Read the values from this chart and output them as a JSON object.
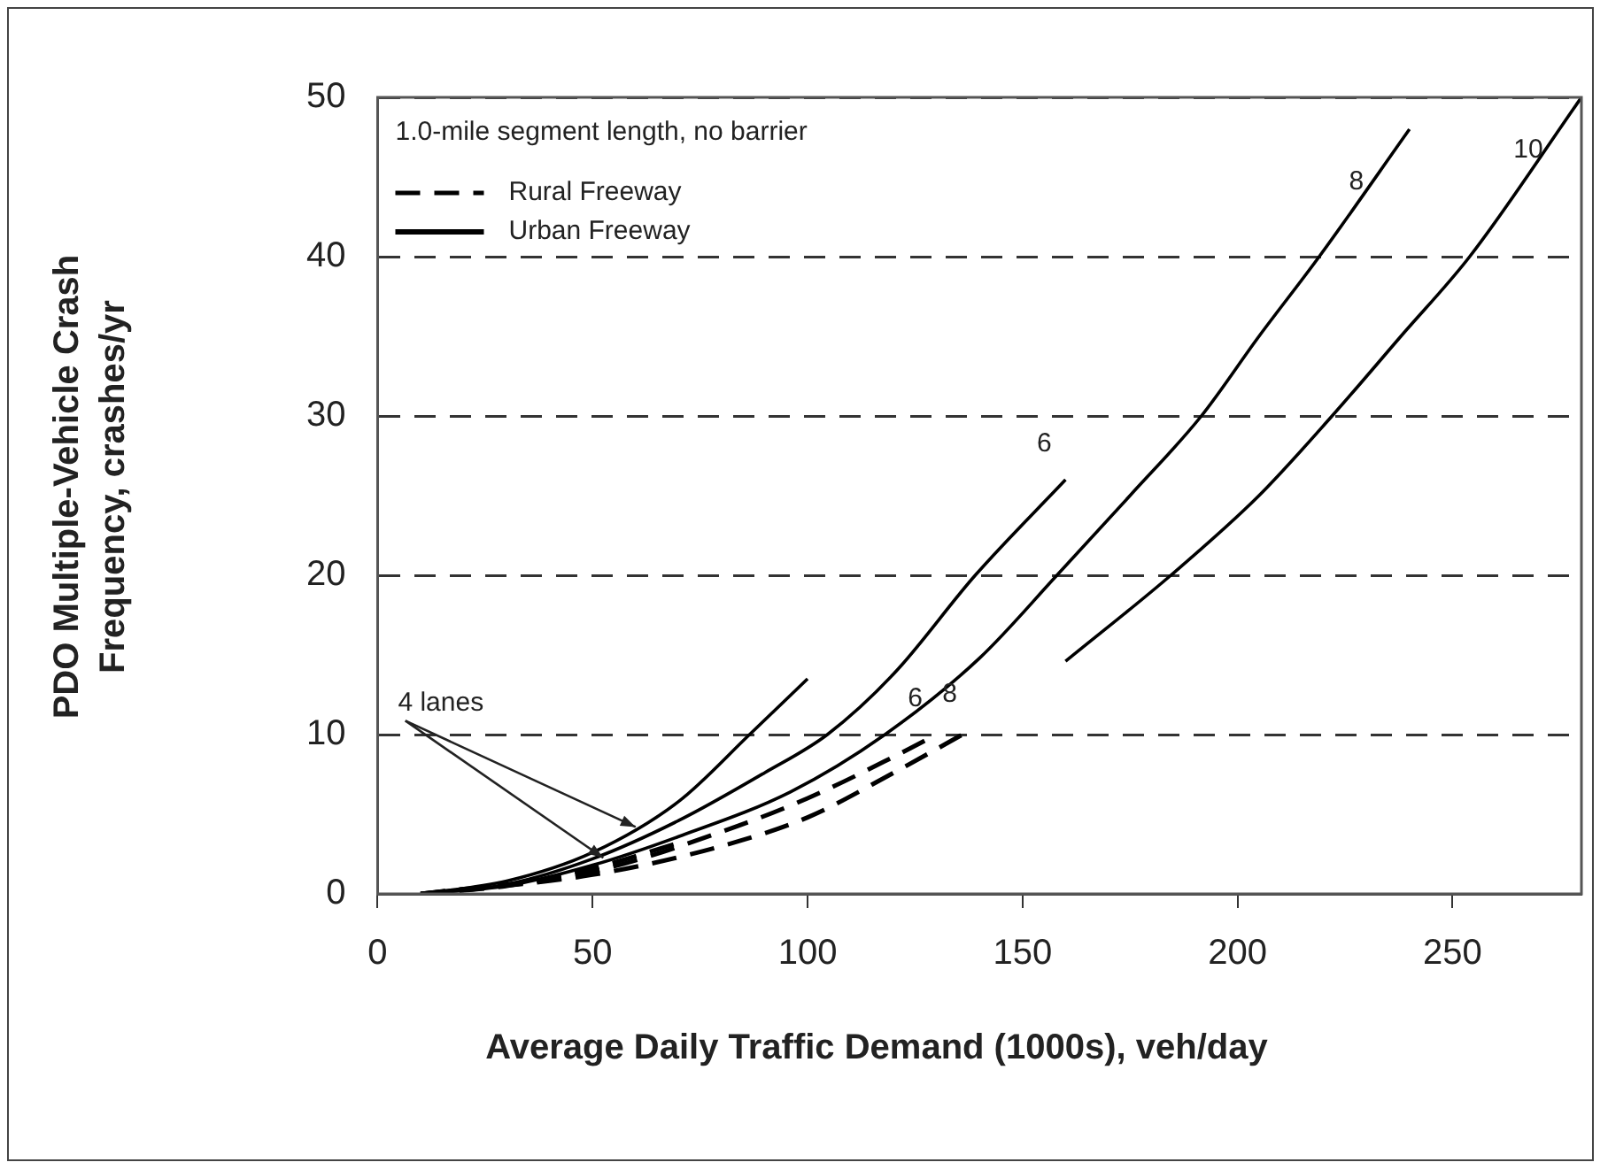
{
  "chart_data": {
    "type": "line",
    "xlabel": "Average Daily Traffic Demand (1000s), veh/day",
    "ylabel": "PDO Multiple-Vehicle Crash Frequency, crashes/yr",
    "xlim": [
      0,
      280
    ],
    "xticks": [
      0,
      50,
      100,
      150,
      200,
      250
    ],
    "ylim": [
      0,
      50
    ],
    "yticks": [
      0,
      10,
      20,
      30,
      40,
      50
    ],
    "grid": "y",
    "legend": "top left",
    "marker": "none",
    "series": [
      {
        "name": "Rural Freeway",
        "color": "#000000",
        "line_style": "dashed",
        "x": [
          10,
          30,
          50,
          70
        ],
        "values": [
          0,
          0.5,
          1.6,
          3.2
        ]
      },
      {
        "name": "Urban Freeway",
        "color": "#000000",
        "line_style": "solid",
        "x": [
          10,
          30,
          50,
          70,
          86.5,
          100
        ],
        "values": [
          0,
          0.8,
          2.6,
          5.8,
          10,
          13.5
        ]
      },
      {
        "color": "#000000",
        "line_style": "dashed",
        "x": [
          10,
          50,
          80,
          100,
          120,
          130
        ],
        "values": [
          0,
          1.4,
          3.9,
          6,
          8.6,
          10
        ]
      },
      {
        "color": "#000000",
        "line_style": "dashed",
        "x": [
          10,
          50,
          80,
          100,
          120,
          138
        ],
        "values": [
          0,
          1.2,
          3,
          4.8,
          7.6,
          10.3
        ]
      },
      {
        "color": "#000000",
        "line_style": "solid",
        "x": [
          10,
          30,
          50,
          70,
          90,
          104.6,
          120,
          139,
          160
        ],
        "values": [
          0,
          0.6,
          2.2,
          4.6,
          7.6,
          10,
          13.8,
          20,
          26
        ]
      },
      {
        "color": "#000000",
        "line_style": "solid",
        "x": [
          10,
          30,
          50,
          70,
          96,
          118,
          140,
          158,
          175,
          191.6,
          205,
          219,
          240
        ],
        "values": [
          0,
          0.5,
          1.8,
          3.6,
          6.4,
          10,
          14.8,
          20,
          25,
          30,
          35,
          40,
          48
        ]
      },
      {
        "color": "#000000",
        "line_style": "solid",
        "x": [
          160,
          184.5,
          205,
          222,
          238,
          254,
          280
        ],
        "values": [
          14.6,
          20,
          25,
          30,
          35,
          40,
          50
        ]
      }
    ],
    "annotations": [
      "1.0-mile segment length, no barrier",
      {
        "text": "4 lanes",
        "x": 60,
        "y": 4.2
      },
      "6",
      "8",
      "6",
      "8",
      "10"
    ]
  }
}
